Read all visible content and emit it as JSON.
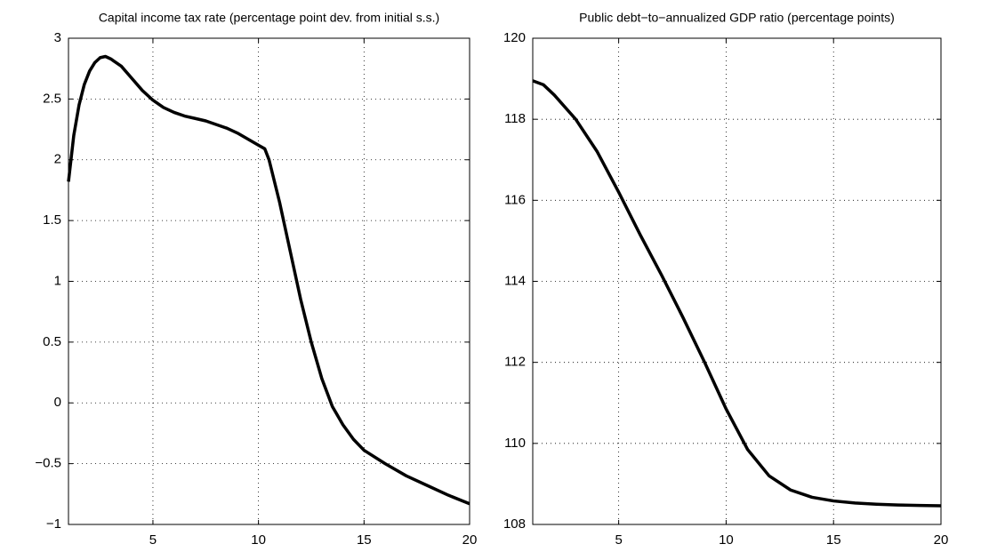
{
  "chart_data": [
    {
      "type": "line",
      "title": "Capital income tax rate (percentage point dev. from initial s.s.)",
      "x": [
        1,
        1.25,
        1.5,
        1.75,
        2,
        2.25,
        2.5,
        2.75,
        3,
        3.5,
        4,
        4.5,
        5,
        5.5,
        6,
        6.5,
        7,
        7.5,
        8,
        8.5,
        9,
        9.5,
        10,
        10.3,
        10.5,
        11,
        11.5,
        12,
        12.5,
        13,
        13.5,
        14,
        14.5,
        15,
        16,
        17,
        18,
        19,
        20
      ],
      "series": [
        {
          "color": "#000000",
          "values": [
            1.82,
            2.2,
            2.45,
            2.62,
            2.73,
            2.8,
            2.84,
            2.85,
            2.83,
            2.77,
            2.67,
            2.57,
            2.49,
            2.43,
            2.39,
            2.36,
            2.34,
            2.32,
            2.29,
            2.26,
            2.22,
            2.17,
            2.12,
            2.09,
            2.0,
            1.65,
            1.25,
            0.85,
            0.5,
            0.2,
            -0.03,
            -0.18,
            -0.3,
            -0.39,
            -0.5,
            -0.6,
            -0.68,
            -0.76,
            -0.83
          ]
        }
      ],
      "xlim": [
        1,
        20
      ],
      "xticks": [
        5,
        10,
        15,
        20
      ],
      "ylim": [
        -1,
        3
      ],
      "yticks": [
        {
          "value": -1,
          "label": "−1"
        },
        {
          "value": -0.5,
          "label": "−0.5"
        },
        0,
        0.5,
        1,
        1.5,
        2,
        2.5,
        3
      ],
      "grid": true
    },
    {
      "type": "line",
      "title": "Public debt−to−annualized GDP ratio (percentage points)",
      "x": [
        1,
        1.5,
        2,
        3,
        4,
        5,
        6,
        7,
        8,
        9,
        10,
        11,
        12,
        13,
        14,
        15,
        16,
        17,
        18,
        19,
        20
      ],
      "series": [
        {
          "color": "#000000",
          "values": [
            118.95,
            118.85,
            118.6,
            118.0,
            117.2,
            116.2,
            115.15,
            114.15,
            113.1,
            112.0,
            110.85,
            109.85,
            109.2,
            108.85,
            108.67,
            108.58,
            108.53,
            108.5,
            108.48,
            108.47,
            108.46
          ]
        }
      ],
      "xlim": [
        1,
        20
      ],
      "xticks": [
        5,
        10,
        15,
        20
      ],
      "ylim": [
        108,
        120
      ],
      "yticks": [
        108,
        110,
        112,
        114,
        116,
        118,
        120
      ],
      "grid": true
    }
  ]
}
